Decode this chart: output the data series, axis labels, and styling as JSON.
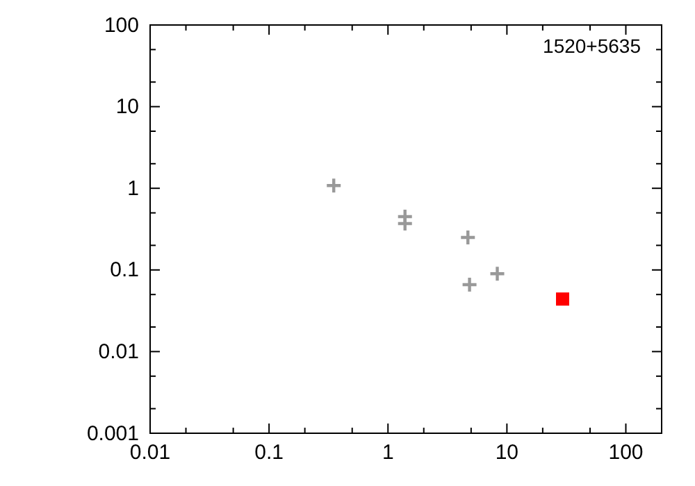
{
  "chart_data": {
    "type": "scatter",
    "log": "xy",
    "annotations": [
      "1520+5635"
    ],
    "xlim": [
      0.01,
      200
    ],
    "ylim": [
      0.001,
      100
    ],
    "xticks": [
      0.01,
      {
        "value": 0.02,
        "label": null
      },
      {
        "value": 0.05,
        "label": null
      },
      0.1,
      {
        "value": 0.2,
        "label": null
      },
      {
        "value": 0.5,
        "label": null
      },
      1,
      {
        "value": 2,
        "label": null
      },
      {
        "value": 5,
        "label": null
      },
      10,
      {
        "value": 20,
        "label": null
      },
      {
        "value": 50,
        "label": null
      },
      100
    ],
    "yticks": [
      0.001,
      {
        "value": 0.002,
        "label": null
      },
      {
        "value": 0.005,
        "label": null
      },
      0.01,
      {
        "value": 0.02,
        "label": null
      },
      {
        "value": 0.05,
        "label": null
      },
      0.1,
      {
        "value": 0.2,
        "label": null
      },
      {
        "value": 0.5,
        "label": null
      },
      1,
      {
        "value": 2,
        "label": null
      },
      {
        "value": 5,
        "label": null
      },
      10,
      {
        "value": 20,
        "label": null
      },
      {
        "value": 50,
        "label": null
      },
      100
    ],
    "series": [
      {
        "color": "#999999",
        "marker": "cross",
        "x": [
          0.35,
          1.39,
          1.39,
          4.7,
          4.85,
          8.3
        ],
        "values": [
          1.08,
          0.45,
          0.37,
          0.25,
          0.066,
          0.09
        ]
      },
      {
        "color": "#ff0000",
        "marker": "square",
        "x": [
          29.4
        ],
        "values": [
          0.044
        ]
      }
    ]
  }
}
